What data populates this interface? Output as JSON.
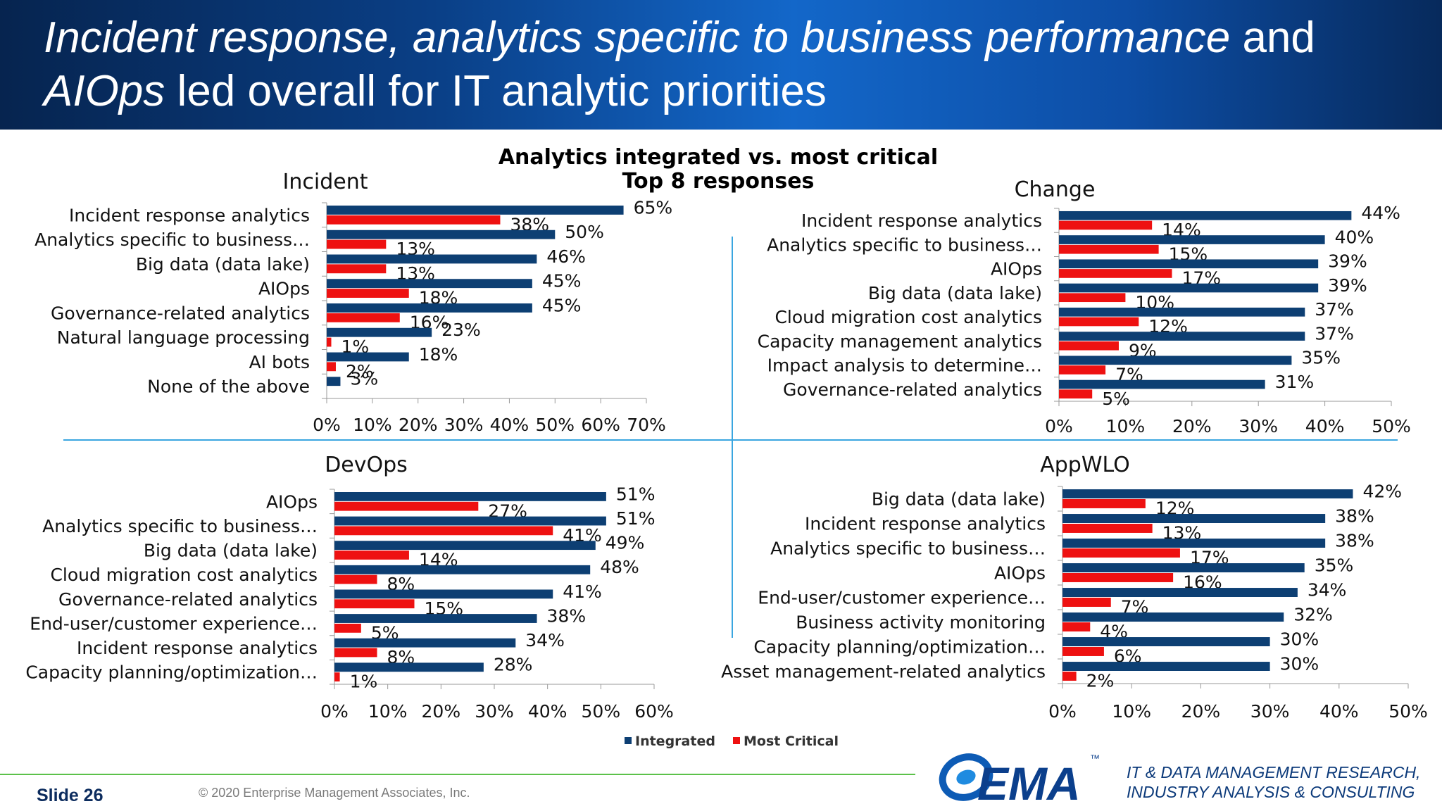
{
  "header": {
    "title_parts": [
      {
        "text": "Incident response, analytics specific to business performance ",
        "italic": true
      },
      {
        "text": " and ",
        "italic": false
      },
      {
        "text": "AIOps",
        "italic": true
      },
      {
        "text": " led overall for IT analytic priorities",
        "italic": false
      }
    ]
  },
  "figure": {
    "title_line1": "Analytics integrated vs. most critical",
    "title_line2": "Top 8 responses"
  },
  "legend": {
    "integrated": "Integrated",
    "most_critical": "Most Critical"
  },
  "colors": {
    "integrated": "#0d3f73",
    "most_critical": "#ee1111",
    "separator": "#3aa6e0"
  },
  "chart_data": [
    {
      "type": "bar",
      "orientation": "horizontal",
      "title": "Incident",
      "categories": [
        "Incident response analytics",
        "Analytics specific to business…",
        "Big data (data lake)",
        "AIOps",
        "Governance-related analytics",
        "Natural language processing",
        "AI bots",
        "None of the above"
      ],
      "series": [
        {
          "name": "Integrated",
          "values": [
            65,
            50,
            46,
            45,
            45,
            23,
            18,
            3
          ]
        },
        {
          "name": "Most Critical",
          "values": [
            38,
            13,
            13,
            18,
            16,
            1,
            2,
            null
          ]
        }
      ],
      "xlim": [
        0,
        70
      ],
      "xticks": [
        "0%",
        "10%",
        "20%",
        "30%",
        "40%",
        "50%",
        "60%",
        "70%"
      ],
      "unit": "%"
    },
    {
      "type": "bar",
      "orientation": "horizontal",
      "title": "Change",
      "categories": [
        "Incident response analytics",
        "Analytics specific to business…",
        "AIOps",
        "Big data (data lake)",
        "Cloud migration cost analytics",
        "Capacity management analytics",
        "Impact analysis to determine…",
        "Governance-related analytics"
      ],
      "series": [
        {
          "name": "Integrated",
          "values": [
            44,
            40,
            39,
            39,
            37,
            37,
            35,
            31
          ]
        },
        {
          "name": "Most Critical",
          "values": [
            14,
            15,
            17,
            10,
            12,
            9,
            7,
            5
          ]
        }
      ],
      "xlim": [
        0,
        50
      ],
      "xticks": [
        "0%",
        "10%",
        "20%",
        "30%",
        "40%",
        "50%"
      ],
      "unit": "%"
    },
    {
      "type": "bar",
      "orientation": "horizontal",
      "title": "DevOps",
      "categories": [
        "AIOps",
        "Analytics specific to business…",
        "Big data (data lake)",
        "Cloud migration cost analytics",
        "Governance-related analytics",
        "End-user/customer experience…",
        "Incident response analytics",
        "Capacity planning/optimization…"
      ],
      "series": [
        {
          "name": "Integrated",
          "values": [
            51,
            51,
            49,
            48,
            41,
            38,
            34,
            28
          ]
        },
        {
          "name": "Most Critical",
          "values": [
            27,
            41,
            14,
            8,
            15,
            5,
            8,
            1
          ]
        }
      ],
      "xlim": [
        0,
        60
      ],
      "xticks": [
        "0%",
        "10%",
        "20%",
        "30%",
        "40%",
        "50%",
        "60%"
      ],
      "unit": "%"
    },
    {
      "type": "bar",
      "orientation": "horizontal",
      "title": "AppWLO",
      "categories": [
        "Big data (data lake)",
        "Incident response analytics",
        "Analytics specific to business…",
        "AIOps",
        "End-user/customer experience…",
        "Business activity monitoring",
        "Capacity planning/optimization…",
        "Asset management-related analytics"
      ],
      "series": [
        {
          "name": "Integrated",
          "values": [
            42,
            38,
            38,
            35,
            34,
            32,
            30,
            30
          ]
        },
        {
          "name": "Most Critical",
          "values": [
            12,
            13,
            17,
            16,
            7,
            4,
            6,
            2
          ]
        }
      ],
      "xlim": [
        0,
        50
      ],
      "xticks": [
        "0%",
        "10%",
        "20%",
        "30%",
        "40%",
        "50%"
      ],
      "unit": "%"
    }
  ],
  "footer": {
    "slide": "Slide 26",
    "copyright": "© 2020 Enterprise Management Associates, Inc.",
    "logo_text": "EMA",
    "logo_mark": "™",
    "tagline_line1": "IT & DATA MANAGEMENT RESEARCH,",
    "tagline_line2": "INDUSTRY ANALYSIS & CONSULTING"
  }
}
